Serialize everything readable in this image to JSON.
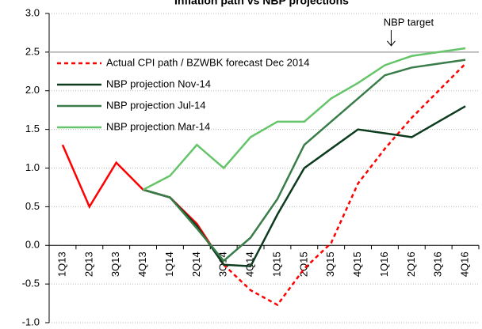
{
  "chart_data": {
    "type": "line",
    "title": "Inflation path vs NBP projections",
    "categories": [
      "1Q13",
      "2Q13",
      "3Q13",
      "4Q13",
      "1Q14",
      "2Q14",
      "3Q14",
      "4Q14",
      "1Q15",
      "2Q15",
      "3Q15",
      "4Q15",
      "1Q16",
      "2Q16",
      "3Q16",
      "4Q16"
    ],
    "series": [
      {
        "name": "Actual CPI path / BZWBK forecast Dec 2014",
        "color": "#ff0000",
        "forecast_from": "3Q14",
        "values": [
          1.3,
          0.5,
          1.07,
          0.72,
          0.62,
          0.28,
          -0.25,
          -0.58,
          -0.77,
          -0.3,
          0.03,
          0.8,
          1.25,
          1.65,
          2.0,
          2.35
        ]
      },
      {
        "name": "NBP projection Nov-14",
        "color": "#0d3b1e",
        "values": [
          null,
          null,
          null,
          0.72,
          0.62,
          0.25,
          -0.25,
          -0.27,
          0.4,
          1.0,
          1.25,
          1.5,
          1.45,
          1.4,
          1.6,
          1.8
        ]
      },
      {
        "name": "NBP projection Jul-14",
        "color": "#3a7d4a",
        "values": [
          null,
          null,
          null,
          0.72,
          0.62,
          0.22,
          -0.2,
          0.1,
          0.6,
          1.3,
          1.6,
          1.9,
          2.2,
          2.3,
          2.35,
          2.4
        ]
      },
      {
        "name": "NBP projection Mar-14",
        "color": "#66c46a",
        "values": [
          null,
          null,
          null,
          0.72,
          0.9,
          1.3,
          1.0,
          1.4,
          1.6,
          1.6,
          1.9,
          2.1,
          2.33,
          2.45,
          2.5,
          2.55
        ]
      }
    ],
    "ylim": [
      -1,
      3
    ],
    "yticks": [
      {
        "value": -1,
        "label": "-1.0"
      },
      {
        "value": -0.5,
        "label": "-0.5"
      },
      {
        "value": 0,
        "label": "0.0"
      },
      {
        "value": 0.5,
        "label": "0.5"
      },
      {
        "value": 1,
        "label": "1.0"
      },
      {
        "value": 1.5,
        "label": "1.5"
      },
      {
        "value": 2,
        "label": "2.0"
      },
      {
        "value": 2.5,
        "label": "2.5"
      },
      {
        "value": 3,
        "label": "3.0"
      }
    ],
    "grid": true,
    "target": {
      "value": 2.5,
      "label": "NBP target",
      "category": "1Q16"
    }
  }
}
